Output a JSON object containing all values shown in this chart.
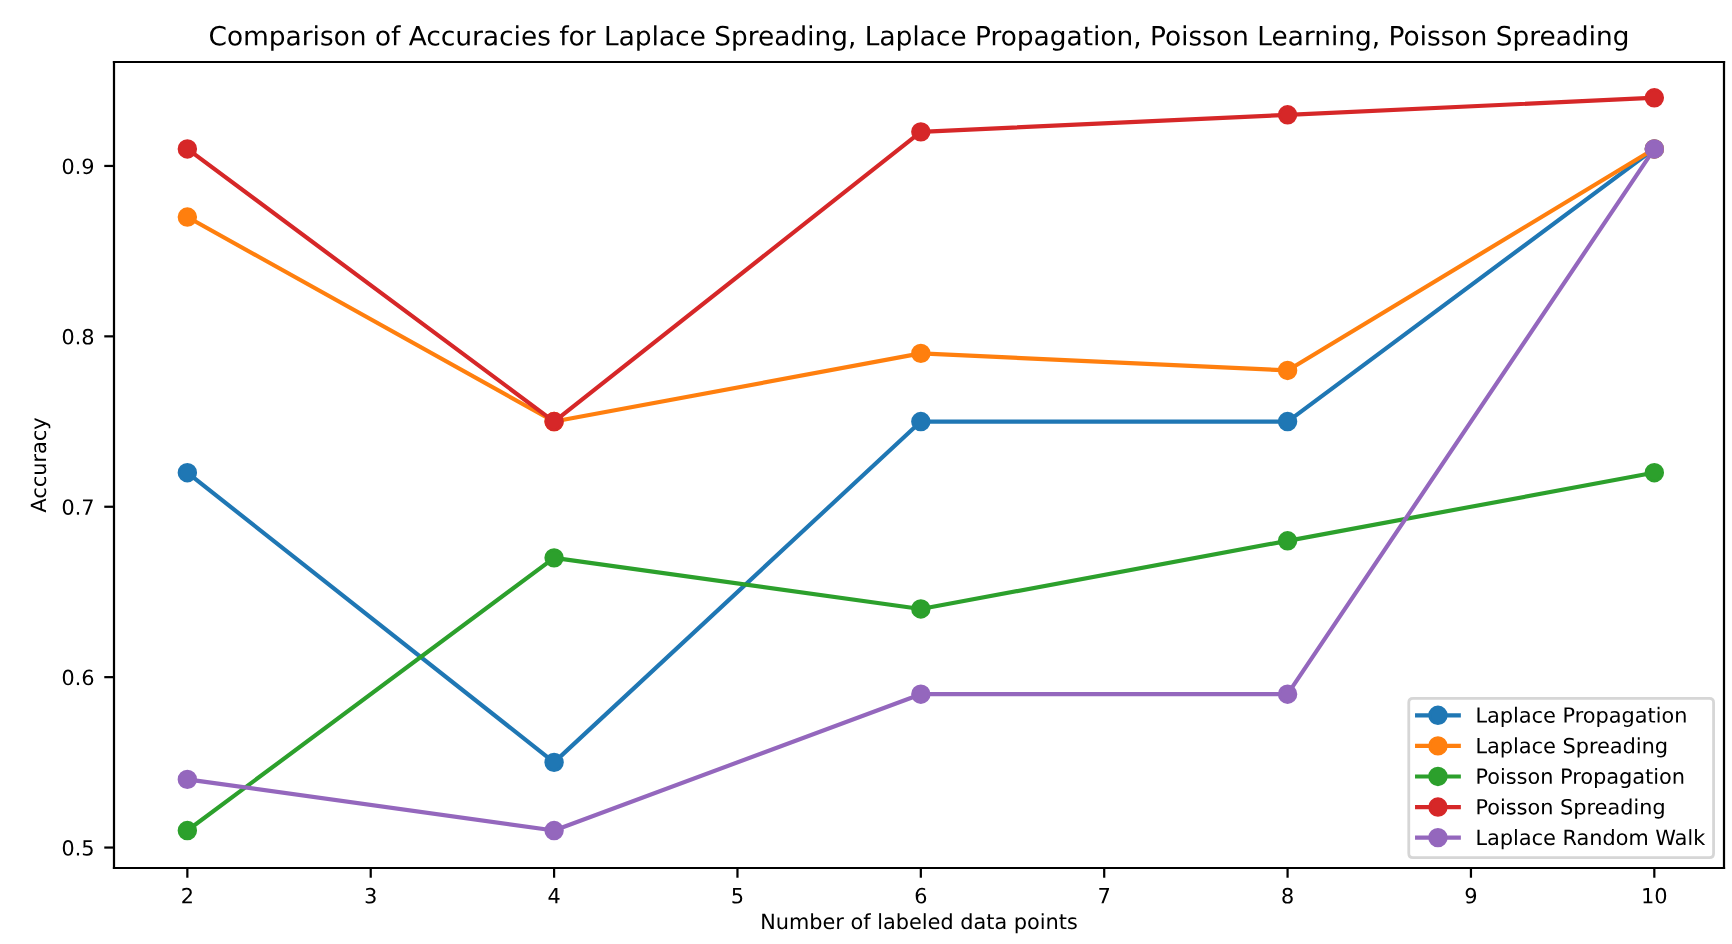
{
  "chart_data": {
    "type": "line",
    "title": "Comparison of Accuracies for Laplace Spreading, Laplace Propagation, Poisson Learning, Poisson Spreading",
    "xlabel": "Number of labeled data points",
    "ylabel": "Accuracy",
    "x": [
      2,
      4,
      6,
      8,
      10
    ],
    "series": [
      {
        "name": "Laplace Propagation",
        "color": "#1f77b4",
        "values": [
          0.72,
          0.55,
          0.75,
          0.75,
          0.91
        ]
      },
      {
        "name": "Laplace Spreading",
        "color": "#ff7f0e",
        "values": [
          0.87,
          0.75,
          0.79,
          0.78,
          0.91
        ]
      },
      {
        "name": "Poisson Propagation",
        "color": "#2ca02c",
        "values": [
          0.51,
          0.67,
          0.64,
          0.68,
          0.72
        ]
      },
      {
        "name": "Poisson Spreading",
        "color": "#d62728",
        "values": [
          0.91,
          0.75,
          0.92,
          0.93,
          0.94
        ]
      },
      {
        "name": "Laplace Random Walk",
        "color": "#9467bd",
        "values": [
          0.54,
          0.51,
          0.59,
          0.59,
          0.91
        ]
      }
    ],
    "xlim": [
      1.6,
      10.38
    ],
    "xticks": [
      2,
      3,
      4,
      5,
      6,
      7,
      8,
      9,
      10
    ],
    "ylim": [
      0.488,
      0.961
    ],
    "yticks": [
      0.5,
      0.6,
      0.7,
      0.8,
      0.9
    ],
    "marker": "circle",
    "line_style": "solid",
    "legend": "bottom right",
    "grid": false
  }
}
